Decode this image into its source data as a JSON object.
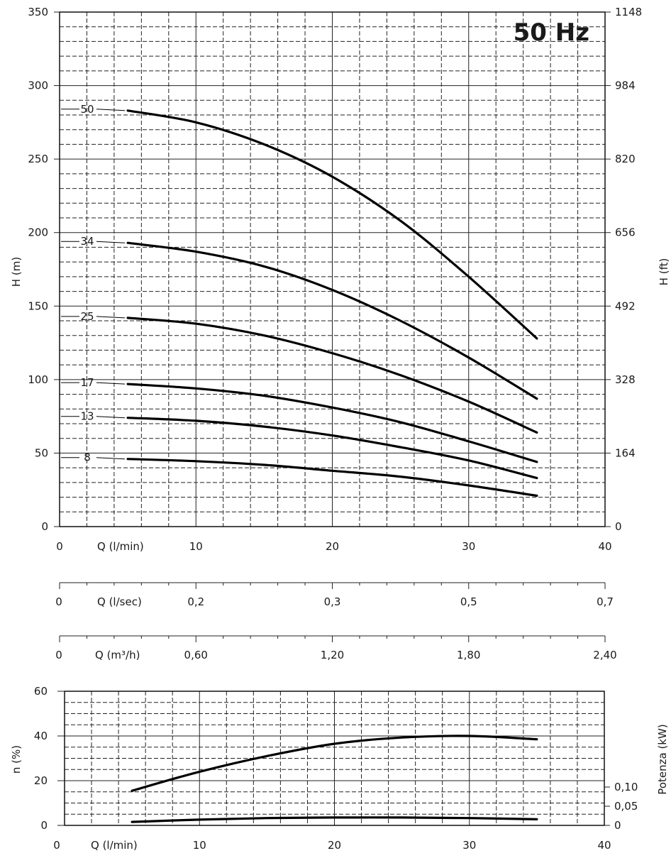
{
  "chart_data": [
    {
      "type": "line",
      "title": "50 Hz",
      "x_unit_label": "Q (l/min)",
      "ylabel_left": "H (m)",
      "ylabel_right": "H (ft)",
      "xlim": [
        0,
        40
      ],
      "ylim": [
        0,
        350
      ],
      "x_ticks": [
        "0",
        "10",
        "20",
        "30",
        "40"
      ],
      "y_ticks": [
        "0",
        "50",
        "100",
        "150",
        "200",
        "250",
        "300",
        "350"
      ],
      "y_ticks_right": [
        "0",
        "164",
        "328",
        "492",
        "656",
        "820",
        "984",
        "1148"
      ],
      "series": [
        {
          "name": "50",
          "x": [
            5,
            10,
            15,
            20,
            25,
            30,
            35
          ],
          "values": [
            283,
            275,
            260,
            238,
            208,
            170,
            128
          ]
        },
        {
          "name": "34",
          "x": [
            5,
            10,
            15,
            20,
            25,
            30,
            35
          ],
          "values": [
            193,
            187,
            177,
            161,
            140,
            115,
            87
          ]
        },
        {
          "name": "25",
          "x": [
            5,
            10,
            15,
            20,
            25,
            30,
            35
          ],
          "values": [
            142,
            138,
            130,
            118,
            103,
            85,
            64
          ]
        },
        {
          "name": "17",
          "x": [
            5,
            10,
            15,
            20,
            25,
            30,
            35
          ],
          "values": [
            97,
            94,
            89,
            81,
            71,
            58,
            44
          ]
        },
        {
          "name": "13",
          "x": [
            5,
            10,
            15,
            20,
            25,
            30,
            35
          ],
          "values": [
            74,
            72,
            68,
            62,
            54,
            45,
            33
          ]
        },
        {
          "name": "8",
          "x": [
            5,
            10,
            15,
            20,
            25,
            30,
            35
          ],
          "values": [
            46,
            44.5,
            42,
            38,
            34,
            28,
            21
          ]
        }
      ]
    },
    {
      "type": "axis",
      "unit_label": "Q (l/sec)",
      "zero_label": "0",
      "tick_labels": [
        "0,2",
        "0,3",
        "0,5",
        "0,7"
      ]
    },
    {
      "type": "axis",
      "unit_label": "Q (m³/h)",
      "zero_label": "0",
      "tick_labels": [
        "0,60",
        "1,20",
        "1,80",
        "2,40"
      ]
    },
    {
      "type": "line",
      "x_unit_label": "Q (l/min)",
      "ylabel_left": "n (%)",
      "ylabel_right": "Potenza (kW)",
      "xlim": [
        0,
        40
      ],
      "ylim": [
        0,
        60
      ],
      "x_ticks": [
        "0",
        "10",
        "20",
        "30",
        "40"
      ],
      "y_ticks": [
        "0",
        "20",
        "40",
        "60"
      ],
      "y_ticks_right": [
        "0",
        "0,05",
        "0,10"
      ],
      "series": [
        {
          "name": "n (%)",
          "x": [
            5,
            10,
            15,
            20,
            25,
            30,
            35
          ],
          "values": [
            15.5,
            24,
            31,
            36.5,
            39.3,
            40,
            38.5
          ]
        },
        {
          "name": "Potenza (kW)",
          "x": [
            5,
            10,
            15,
            20,
            25,
            30,
            35
          ],
          "values": [
            0.009,
            0.015,
            0.019,
            0.0205,
            0.0205,
            0.019,
            0.016
          ]
        }
      ]
    }
  ]
}
